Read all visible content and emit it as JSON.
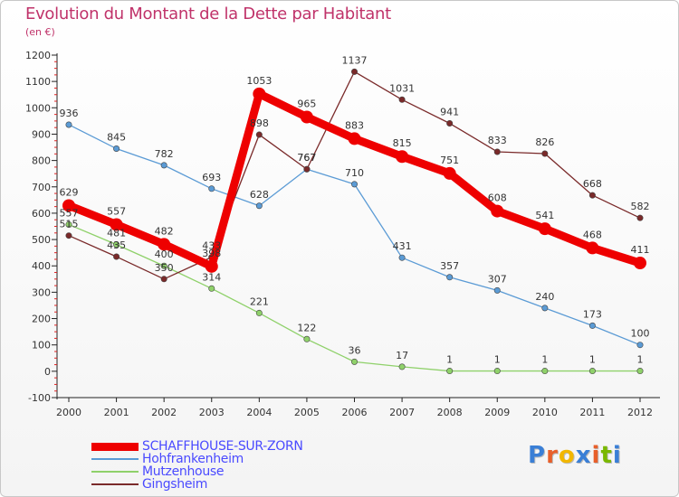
{
  "title": "Evolution du Montant de la Dette par Habitant",
  "subtitle": "(en €)",
  "brand": {
    "text": "Proxiti",
    "colors": [
      "#3a7fd6",
      "#e85f2a",
      "#f2b700",
      "#3a7fd6",
      "#e85f2a",
      "#7ab800",
      "#3a7fd6"
    ]
  },
  "chart_data": {
    "type": "line",
    "x": [
      "2000",
      "2001",
      "2002",
      "2003",
      "2004",
      "2005",
      "2006",
      "2007",
      "2008",
      "2009",
      "2010",
      "2011",
      "2012"
    ],
    "ylim": [
      -100,
      1200
    ],
    "yticks": [
      "-100",
      "0",
      "100",
      "200",
      "300",
      "400",
      "500",
      "600",
      "700",
      "800",
      "900",
      "1000",
      "1100",
      "1200"
    ],
    "grid": false,
    "legend": "bottom-left",
    "series": [
      {
        "name": "SCHAFFHOUSE-SUR-ZORN",
        "color": "#ee0000",
        "emphasis": true,
        "values": [
          629,
          557,
          482,
          398,
          1053,
          965,
          883,
          815,
          751,
          608,
          541,
          468,
          411
        ],
        "labels": [
          "629",
          "557",
          "482",
          "398",
          "1053",
          "965",
          "883",
          "815",
          "751",
          "608",
          "541",
          "468",
          "411"
        ]
      },
      {
        "name": "Hohfrankenheim",
        "color": "#5b9bd5",
        "values": [
          936,
          845,
          782,
          693,
          628,
          767,
          710,
          431,
          357,
          307,
          240,
          173,
          100
        ],
        "labels": [
          "936",
          "845",
          "782",
          "693",
          "628",
          "767",
          "710",
          "431",
          "357",
          "307",
          "240",
          "173",
          "100"
        ]
      },
      {
        "name": "Mutzenhouse",
        "color": "#8fd16a",
        "values": [
          557,
          481,
          400,
          314,
          221,
          122,
          36,
          17,
          1,
          1,
          1,
          1,
          1
        ],
        "labels": [
          "557",
          "481",
          "400",
          "314",
          "221",
          "122",
          "36",
          "17",
          "1",
          "1",
          "1",
          "1",
          "1"
        ]
      },
      {
        "name": "Gingsheim",
        "color": "#7a2a2a",
        "values": [
          515,
          435,
          350,
          433,
          898,
          767,
          1137,
          1031,
          941,
          833,
          826,
          668,
          582
        ],
        "labels": [
          "515",
          "435",
          "350",
          "433",
          "898",
          "767",
          "1137",
          "1031",
          "941",
          "833",
          "826",
          "668",
          "582"
        ]
      }
    ]
  }
}
